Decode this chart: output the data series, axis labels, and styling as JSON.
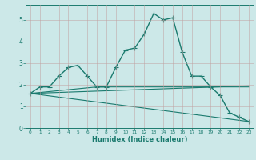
{
  "title": "",
  "xlabel": "Humidex (Indice chaleur)",
  "ylabel": "",
  "bg_color": "#cce8e8",
  "line_color": "#1a7a6e",
  "xlim": [
    -0.5,
    23.5
  ],
  "ylim": [
    0,
    5.7
  ],
  "yticks": [
    0,
    1,
    2,
    3,
    4,
    5
  ],
  "xticks": [
    0,
    1,
    2,
    3,
    4,
    5,
    6,
    7,
    8,
    9,
    10,
    11,
    12,
    13,
    14,
    15,
    16,
    17,
    18,
    19,
    20,
    21,
    22,
    23
  ],
  "series": [
    {
      "x": [
        0,
        1,
        2,
        3,
        4,
        5,
        6,
        7,
        8,
        9,
        10,
        11,
        12,
        13,
        14,
        15,
        16,
        17,
        18,
        19,
        20,
        21,
        22,
        23
      ],
      "y": [
        1.6,
        1.9,
        1.9,
        2.4,
        2.8,
        2.9,
        2.4,
        1.9,
        1.9,
        2.8,
        3.6,
        3.7,
        4.35,
        5.3,
        5.0,
        5.1,
        3.5,
        2.4,
        2.4,
        1.9,
        1.5,
        0.7,
        0.5,
        0.3
      ],
      "marker": "+",
      "markersize": 4,
      "linewidth": 1.0
    },
    {
      "x": [
        0,
        23
      ],
      "y": [
        1.6,
        1.95
      ],
      "marker": null,
      "markersize": 0,
      "linewidth": 0.8
    },
    {
      "x": [
        0,
        23
      ],
      "y": [
        1.6,
        0.3
      ],
      "marker": null,
      "markersize": 0,
      "linewidth": 0.8
    },
    {
      "x": [
        0,
        7,
        23
      ],
      "y": [
        1.6,
        1.9,
        1.9
      ],
      "marker": null,
      "markersize": 0,
      "linewidth": 0.8
    }
  ]
}
